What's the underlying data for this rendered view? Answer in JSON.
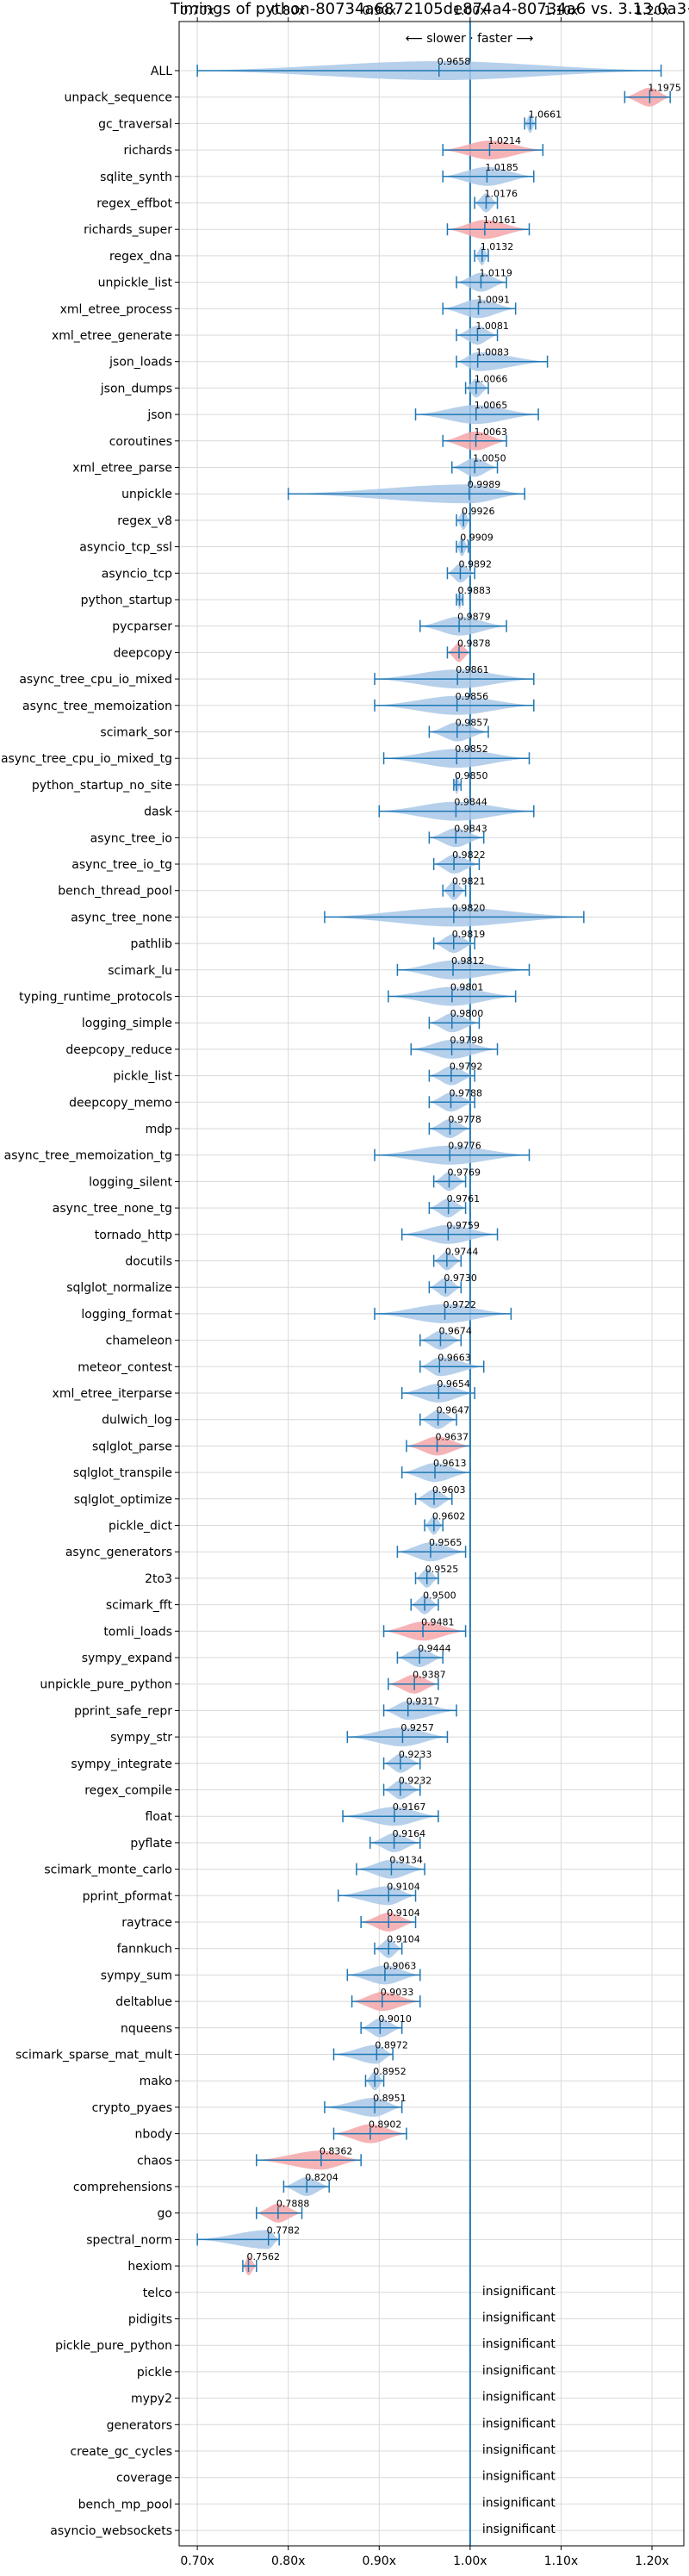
{
  "chart_data": {
    "type": "violin",
    "title": "Timings of python-80734a6872105de874a4-80734a6 vs. 3.13.0a3+",
    "subtitle": "⟵ slower · faster ⟶",
    "xlim": [
      0.68,
      1.235
    ],
    "x_ticks": [
      0.7,
      0.8,
      0.9,
      1.0,
      1.1,
      1.2
    ],
    "x_tick_labels": [
      "0.70x",
      "0.80x",
      "0.90x",
      "1.00x",
      "1.10x",
      "1.20x"
    ],
    "reference_line": 1.0,
    "grid": true,
    "colors": {
      "faster": "#f4a6a9",
      "slower": "#a9c8e8",
      "errorbar": "#1f77b4",
      "reference": "#1f77b4"
    },
    "insignificant_text": "insignificant",
    "benchmarks": [
      {
        "name": "ALL",
        "value": 0.9658,
        "lo": 0.7,
        "hi": 1.21,
        "label": "0.9658",
        "color": "slower"
      },
      {
        "name": "unpack_sequence",
        "value": 1.1975,
        "lo": 1.17,
        "hi": 1.22,
        "label": "1.1975",
        "color": "faster"
      },
      {
        "name": "gc_traversal",
        "value": 1.0661,
        "lo": 1.06,
        "hi": 1.072,
        "label": "1.0661",
        "color": "slower"
      },
      {
        "name": "richards",
        "value": 1.0214,
        "lo": 0.97,
        "hi": 1.08,
        "label": "1.0214",
        "color": "faster"
      },
      {
        "name": "sqlite_synth",
        "value": 1.0185,
        "lo": 0.97,
        "hi": 1.07,
        "label": "1.0185",
        "color": "slower"
      },
      {
        "name": "regex_effbot",
        "value": 1.0176,
        "lo": 1.005,
        "hi": 1.03,
        "label": "1.0176",
        "color": "slower"
      },
      {
        "name": "richards_super",
        "value": 1.0161,
        "lo": 0.975,
        "hi": 1.065,
        "label": "1.0161",
        "color": "faster"
      },
      {
        "name": "regex_dna",
        "value": 1.0132,
        "lo": 1.005,
        "hi": 1.02,
        "label": "1.0132",
        "color": "slower"
      },
      {
        "name": "unpickle_list",
        "value": 1.0119,
        "lo": 0.985,
        "hi": 1.04,
        "label": "1.0119",
        "color": "slower"
      },
      {
        "name": "xml_etree_process",
        "value": 1.0091,
        "lo": 0.97,
        "hi": 1.05,
        "label": "1.0091",
        "color": "slower"
      },
      {
        "name": "xml_etree_generate",
        "value": 1.0081,
        "lo": 0.985,
        "hi": 1.03,
        "label": "1.0081",
        "color": "slower"
      },
      {
        "name": "json_loads",
        "value": 1.0083,
        "lo": 0.985,
        "hi": 1.085,
        "label": "1.0083",
        "color": "slower"
      },
      {
        "name": "json_dumps",
        "value": 1.0066,
        "lo": 0.995,
        "hi": 1.02,
        "label": "1.0066",
        "color": "slower"
      },
      {
        "name": "json",
        "value": 1.0065,
        "lo": 0.94,
        "hi": 1.075,
        "label": "1.0065",
        "color": "slower"
      },
      {
        "name": "coroutines",
        "value": 1.0063,
        "lo": 0.97,
        "hi": 1.04,
        "label": "1.0063",
        "color": "faster"
      },
      {
        "name": "xml_etree_parse",
        "value": 1.005,
        "lo": 0.98,
        "hi": 1.03,
        "label": "1.0050",
        "color": "slower"
      },
      {
        "name": "unpickle",
        "value": 0.9989,
        "lo": 0.8,
        "hi": 1.06,
        "label": "0.9989",
        "color": "slower"
      },
      {
        "name": "regex_v8",
        "value": 0.9926,
        "lo": 0.985,
        "hi": 1.0,
        "label": "0.9926",
        "color": "slower"
      },
      {
        "name": "asyncio_tcp_ssl",
        "value": 0.9909,
        "lo": 0.985,
        "hi": 0.998,
        "label": "0.9909",
        "color": "slower"
      },
      {
        "name": "asyncio_tcp",
        "value": 0.9892,
        "lo": 0.975,
        "hi": 1.005,
        "label": "0.9892",
        "color": "slower"
      },
      {
        "name": "python_startup",
        "value": 0.9883,
        "lo": 0.985,
        "hi": 0.992,
        "label": "0.9883",
        "color": "slower"
      },
      {
        "name": "pycparser",
        "value": 0.9879,
        "lo": 0.945,
        "hi": 1.04,
        "label": "0.9879",
        "color": "slower"
      },
      {
        "name": "deepcopy",
        "value": 0.9878,
        "lo": 0.975,
        "hi": 1.0,
        "label": "0.9878",
        "color": "faster"
      },
      {
        "name": "async_tree_cpu_io_mixed",
        "value": 0.9861,
        "lo": 0.895,
        "hi": 1.07,
        "label": "0.9861",
        "color": "slower"
      },
      {
        "name": "async_tree_memoization",
        "value": 0.9856,
        "lo": 0.895,
        "hi": 1.07,
        "label": "0.9856",
        "color": "slower"
      },
      {
        "name": "scimark_sor",
        "value": 0.9857,
        "lo": 0.955,
        "hi": 1.02,
        "label": "0.9857",
        "color": "slower"
      },
      {
        "name": "async_tree_cpu_io_mixed_tg",
        "value": 0.9852,
        "lo": 0.905,
        "hi": 1.065,
        "label": "0.9852",
        "color": "slower"
      },
      {
        "name": "python_startup_no_site",
        "value": 0.985,
        "lo": 0.982,
        "hi": 0.99,
        "label": "0.9850",
        "color": "slower"
      },
      {
        "name": "dask",
        "value": 0.9844,
        "lo": 0.9,
        "hi": 1.07,
        "label": "0.9844",
        "color": "slower"
      },
      {
        "name": "async_tree_io",
        "value": 0.9843,
        "lo": 0.955,
        "hi": 1.015,
        "label": "0.9843",
        "color": "slower"
      },
      {
        "name": "async_tree_io_tg",
        "value": 0.9822,
        "lo": 0.96,
        "hi": 1.01,
        "label": "0.9822",
        "color": "slower"
      },
      {
        "name": "bench_thread_pool",
        "value": 0.9821,
        "lo": 0.97,
        "hi": 0.995,
        "label": "0.9821",
        "color": "slower"
      },
      {
        "name": "async_tree_none",
        "value": 0.982,
        "lo": 0.84,
        "hi": 1.125,
        "label": "0.9820",
        "color": "slower"
      },
      {
        "name": "pathlib",
        "value": 0.9819,
        "lo": 0.96,
        "hi": 1.005,
        "label": "0.9819",
        "color": "slower"
      },
      {
        "name": "scimark_lu",
        "value": 0.9812,
        "lo": 0.92,
        "hi": 1.065,
        "label": "0.9812",
        "color": "slower"
      },
      {
        "name": "typing_runtime_protocols",
        "value": 0.9801,
        "lo": 0.91,
        "hi": 1.05,
        "label": "0.9801",
        "color": "slower"
      },
      {
        "name": "logging_simple",
        "value": 0.98,
        "lo": 0.955,
        "hi": 1.01,
        "label": "0.9800",
        "color": "slower"
      },
      {
        "name": "deepcopy_reduce",
        "value": 0.9798,
        "lo": 0.935,
        "hi": 1.03,
        "label": "0.9798",
        "color": "slower"
      },
      {
        "name": "pickle_list",
        "value": 0.9792,
        "lo": 0.955,
        "hi": 1.005,
        "label": "0.9792",
        "color": "slower"
      },
      {
        "name": "deepcopy_memo",
        "value": 0.9788,
        "lo": 0.955,
        "hi": 1.005,
        "label": "0.9788",
        "color": "slower"
      },
      {
        "name": "mdp",
        "value": 0.9778,
        "lo": 0.955,
        "hi": 1.0,
        "label": "0.9778",
        "color": "slower"
      },
      {
        "name": "async_tree_memoization_tg",
        "value": 0.9776,
        "lo": 0.895,
        "hi": 1.065,
        "label": "0.9776",
        "color": "slower"
      },
      {
        "name": "logging_silent",
        "value": 0.9769,
        "lo": 0.96,
        "hi": 0.995,
        "label": "0.9769",
        "color": "slower"
      },
      {
        "name": "async_tree_none_tg",
        "value": 0.9761,
        "lo": 0.955,
        "hi": 0.995,
        "label": "0.9761",
        "color": "slower"
      },
      {
        "name": "tornado_http",
        "value": 0.9759,
        "lo": 0.925,
        "hi": 1.03,
        "label": "0.9759",
        "color": "slower"
      },
      {
        "name": "docutils",
        "value": 0.9744,
        "lo": 0.96,
        "hi": 0.99,
        "label": "0.9744",
        "color": "slower"
      },
      {
        "name": "sqlglot_normalize",
        "value": 0.973,
        "lo": 0.955,
        "hi": 0.99,
        "label": "0.9730",
        "color": "slower"
      },
      {
        "name": "logging_format",
        "value": 0.9722,
        "lo": 0.895,
        "hi": 1.045,
        "label": "0.9722",
        "color": "slower"
      },
      {
        "name": "chameleon",
        "value": 0.9674,
        "lo": 0.945,
        "hi": 0.99,
        "label": "0.9674",
        "color": "slower"
      },
      {
        "name": "meteor_contest",
        "value": 0.9663,
        "lo": 0.945,
        "hi": 1.015,
        "label": "0.9663",
        "color": "slower"
      },
      {
        "name": "xml_etree_iterparse",
        "value": 0.9654,
        "lo": 0.925,
        "hi": 1.005,
        "label": "0.9654",
        "color": "slower"
      },
      {
        "name": "dulwich_log",
        "value": 0.9647,
        "lo": 0.945,
        "hi": 0.985,
        "label": "0.9647",
        "color": "slower"
      },
      {
        "name": "sqlglot_parse",
        "value": 0.9637,
        "lo": 0.93,
        "hi": 1.0,
        "label": "0.9637",
        "color": "faster"
      },
      {
        "name": "sqlglot_transpile",
        "value": 0.9613,
        "lo": 0.925,
        "hi": 1.0,
        "label": "0.9613",
        "color": "slower"
      },
      {
        "name": "sqlglot_optimize",
        "value": 0.9603,
        "lo": 0.94,
        "hi": 0.98,
        "label": "0.9603",
        "color": "slower"
      },
      {
        "name": "pickle_dict",
        "value": 0.9602,
        "lo": 0.95,
        "hi": 0.97,
        "label": "0.9602",
        "color": "slower"
      },
      {
        "name": "async_generators",
        "value": 0.9565,
        "lo": 0.92,
        "hi": 0.995,
        "label": "0.9565",
        "color": "slower"
      },
      {
        "name": "2to3",
        "value": 0.9525,
        "lo": 0.94,
        "hi": 0.965,
        "label": "0.9525",
        "color": "slower"
      },
      {
        "name": "scimark_fft",
        "value": 0.95,
        "lo": 0.935,
        "hi": 0.965,
        "label": "0.9500",
        "color": "slower"
      },
      {
        "name": "tomli_loads",
        "value": 0.9481,
        "lo": 0.905,
        "hi": 0.995,
        "label": "0.9481",
        "color": "faster"
      },
      {
        "name": "sympy_expand",
        "value": 0.9444,
        "lo": 0.92,
        "hi": 0.97,
        "label": "0.9444",
        "color": "slower"
      },
      {
        "name": "unpickle_pure_python",
        "value": 0.9387,
        "lo": 0.91,
        "hi": 0.965,
        "label": "0.9387",
        "color": "faster"
      },
      {
        "name": "pprint_safe_repr",
        "value": 0.9317,
        "lo": 0.905,
        "hi": 0.985,
        "label": "0.9317",
        "color": "slower"
      },
      {
        "name": "sympy_str",
        "value": 0.9257,
        "lo": 0.865,
        "hi": 0.975,
        "label": "0.9257",
        "color": "slower"
      },
      {
        "name": "sympy_integrate",
        "value": 0.9233,
        "lo": 0.905,
        "hi": 0.945,
        "label": "0.9233",
        "color": "slower"
      },
      {
        "name": "regex_compile",
        "value": 0.9232,
        "lo": 0.905,
        "hi": 0.945,
        "label": "0.9232",
        "color": "slower"
      },
      {
        "name": "float",
        "value": 0.9167,
        "lo": 0.86,
        "hi": 0.965,
        "label": "0.9167",
        "color": "slower"
      },
      {
        "name": "pyflate",
        "value": 0.9164,
        "lo": 0.89,
        "hi": 0.945,
        "label": "0.9164",
        "color": "slower"
      },
      {
        "name": "scimark_monte_carlo",
        "value": 0.9134,
        "lo": 0.875,
        "hi": 0.95,
        "label": "0.9134",
        "color": "slower"
      },
      {
        "name": "pprint_pformat",
        "value": 0.9104,
        "lo": 0.855,
        "hi": 0.94,
        "label": "0.9104",
        "color": "slower"
      },
      {
        "name": "raytrace",
        "value": 0.9104,
        "lo": 0.88,
        "hi": 0.94,
        "label": "0.9104",
        "color": "faster"
      },
      {
        "name": "fannkuch",
        "value": 0.9104,
        "lo": 0.895,
        "hi": 0.925,
        "label": "0.9104",
        "color": "slower"
      },
      {
        "name": "sympy_sum",
        "value": 0.9063,
        "lo": 0.865,
        "hi": 0.945,
        "label": "0.9063",
        "color": "slower"
      },
      {
        "name": "deltablue",
        "value": 0.9033,
        "lo": 0.87,
        "hi": 0.945,
        "label": "0.9033",
        "color": "faster"
      },
      {
        "name": "nqueens",
        "value": 0.901,
        "lo": 0.88,
        "hi": 0.925,
        "label": "0.9010",
        "color": "slower"
      },
      {
        "name": "scimark_sparse_mat_mult",
        "value": 0.8972,
        "lo": 0.85,
        "hi": 0.915,
        "label": "0.8972",
        "color": "slower"
      },
      {
        "name": "mako",
        "value": 0.8952,
        "lo": 0.885,
        "hi": 0.905,
        "label": "0.8952",
        "color": "slower"
      },
      {
        "name": "crypto_pyaes",
        "value": 0.8951,
        "lo": 0.84,
        "hi": 0.925,
        "label": "0.8951",
        "color": "slower"
      },
      {
        "name": "nbody",
        "value": 0.8902,
        "lo": 0.85,
        "hi": 0.93,
        "label": "0.8902",
        "color": "faster"
      },
      {
        "name": "chaos",
        "value": 0.8362,
        "lo": 0.765,
        "hi": 0.88,
        "label": "0.8362",
        "color": "faster"
      },
      {
        "name": "comprehensions",
        "value": 0.8204,
        "lo": 0.795,
        "hi": 0.845,
        "label": "0.8204",
        "color": "slower"
      },
      {
        "name": "go",
        "value": 0.7888,
        "lo": 0.765,
        "hi": 0.815,
        "label": "0.7888",
        "color": "faster"
      },
      {
        "name": "spectral_norm",
        "value": 0.7782,
        "lo": 0.7,
        "hi": 0.79,
        "label": "0.7782",
        "color": "slower"
      },
      {
        "name": "hexiom",
        "value": 0.7562,
        "lo": 0.75,
        "hi": 0.765,
        "label": "0.7562",
        "color": "faster"
      },
      {
        "name": "telco",
        "insignificant": true
      },
      {
        "name": "pidigits",
        "insignificant": true
      },
      {
        "name": "pickle_pure_python",
        "insignificant": true
      },
      {
        "name": "pickle",
        "insignificant": true
      },
      {
        "name": "mypy2",
        "insignificant": true
      },
      {
        "name": "generators",
        "insignificant": true
      },
      {
        "name": "create_gc_cycles",
        "insignificant": true
      },
      {
        "name": "coverage",
        "insignificant": true
      },
      {
        "name": "bench_mp_pool",
        "insignificant": true
      },
      {
        "name": "asyncio_websockets",
        "insignificant": true
      }
    ]
  }
}
